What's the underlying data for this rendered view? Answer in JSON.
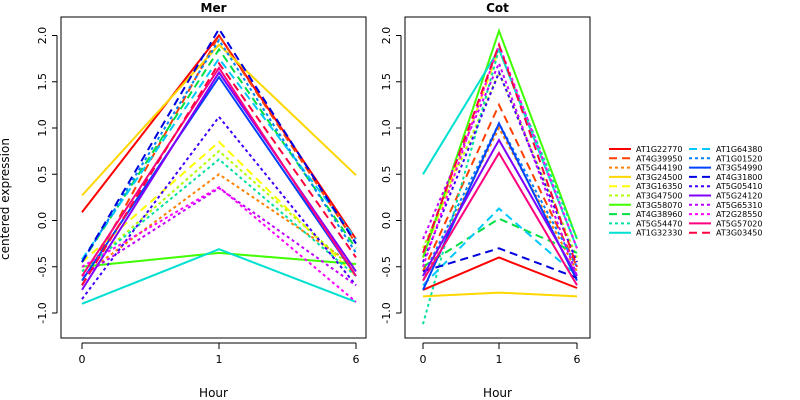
{
  "chart_data": {
    "type": "line",
    "ylabel": "centered expression",
    "xlabel": "Hour",
    "x": [
      "0",
      "1",
      "6"
    ],
    "grid": false,
    "legend_position": "right",
    "yticks": [
      -1.0,
      -0.5,
      0.0,
      0.5,
      1.0,
      1.5,
      2.0
    ],
    "ylim": [
      -1.2,
      2.1
    ],
    "series": [
      {
        "name": "AT1G22770",
        "color": "#ff0000",
        "dash": "solid"
      },
      {
        "name": "AT4G39950",
        "color": "#ff4000",
        "dash": "dashed"
      },
      {
        "name": "AT5G44190",
        "color": "#ff8000",
        "dash": "dotted"
      },
      {
        "name": "AT3G24500",
        "color": "#ffd700",
        "dash": "solid"
      },
      {
        "name": "AT3G16350",
        "color": "#ffff00",
        "dash": "dashed"
      },
      {
        "name": "AT3G47500",
        "color": "#b0ff00",
        "dash": "dotted"
      },
      {
        "name": "AT3G58070",
        "color": "#40ff00",
        "dash": "solid"
      },
      {
        "name": "AT4G38960",
        "color": "#00e040",
        "dash": "dashed"
      },
      {
        "name": "AT5G54470",
        "color": "#00e0a0",
        "dash": "dotted"
      },
      {
        "name": "AT1G32330",
        "color": "#00e0d0",
        "dash": "solid"
      },
      {
        "name": "AT1G64380",
        "color": "#00c8ff",
        "dash": "dashed"
      },
      {
        "name": "AT1G01520",
        "color": "#0080ff",
        "dash": "dotted"
      },
      {
        "name": "AT3G54990",
        "color": "#0040ff",
        "dash": "solid"
      },
      {
        "name": "AT4G31800",
        "color": "#0000e0",
        "dash": "dashed"
      },
      {
        "name": "AT5G05410",
        "color": "#4000ff",
        "dash": "dotted"
      },
      {
        "name": "AT5G24120",
        "color": "#8000ff",
        "dash": "solid"
      },
      {
        "name": "AT5G65310",
        "color": "#c000ff",
        "dash": "dotted"
      },
      {
        "name": "AT2G28550",
        "color": "#ff00ff",
        "dash": "dotted"
      },
      {
        "name": "AT5G57020",
        "color": "#ff0080",
        "dash": "solid"
      },
      {
        "name": "AT3G03450",
        "color": "#ff0040",
        "dash": "dashed"
      }
    ],
    "panels": [
      {
        "title": "Mer",
        "values": [
          [
            0.09,
            2.0,
            -0.2
          ],
          [
            -0.7,
            2.0,
            -0.25
          ],
          [
            -0.6,
            0.5,
            -0.5
          ],
          [
            0.27,
            1.9,
            0.49
          ],
          [
            -0.45,
            0.85,
            -0.6
          ],
          [
            -0.55,
            0.75,
            -0.55
          ],
          [
            -0.5,
            -0.35,
            -0.47
          ],
          [
            -0.45,
            1.85,
            -0.3
          ],
          [
            -0.55,
            0.66,
            -0.6
          ],
          [
            -0.9,
            -0.31,
            -0.88
          ],
          [
            -0.42,
            1.75,
            -0.2
          ],
          [
            -0.45,
            1.95,
            -0.35
          ],
          [
            -0.65,
            1.55,
            -0.6
          ],
          [
            -0.45,
            2.07,
            -0.25
          ],
          [
            -0.85,
            1.12,
            -0.7
          ],
          [
            -0.75,
            1.6,
            -0.55
          ],
          [
            -0.6,
            0.35,
            -0.7
          ],
          [
            -0.5,
            0.36,
            -0.88
          ],
          [
            -0.6,
            1.65,
            -0.6
          ],
          [
            -0.7,
            1.7,
            -0.4
          ]
        ]
      },
      {
        "title": "Cot",
        "values": [
          [
            -0.75,
            -0.4,
            -0.73
          ],
          [
            -0.55,
            1.25,
            -0.5
          ],
          [
            -0.65,
            1.0,
            -0.55
          ],
          [
            -0.82,
            -0.78,
            -0.82
          ],
          [
            -0.4,
            1.85,
            -0.3
          ],
          [
            -0.3,
            1.6,
            -0.4
          ],
          [
            -0.4,
            2.05,
            -0.2
          ],
          [
            -0.5,
            0.02,
            -0.35
          ],
          [
            -1.12,
            1.85,
            -0.2
          ],
          [
            0.5,
            1.85,
            -0.3
          ],
          [
            -0.7,
            0.13,
            -0.6
          ],
          [
            -0.6,
            1.05,
            -0.5
          ],
          [
            -0.75,
            1.05,
            -0.65
          ],
          [
            -0.55,
            -0.3,
            -0.62
          ],
          [
            -0.45,
            1.6,
            -0.45
          ],
          [
            -0.6,
            0.87,
            -0.6
          ],
          [
            -0.2,
            1.7,
            -0.6
          ],
          [
            -0.5,
            1.9,
            -0.3
          ],
          [
            -0.65,
            0.73,
            -0.7
          ],
          [
            -0.35,
            1.9,
            -0.5
          ]
        ]
      }
    ]
  }
}
